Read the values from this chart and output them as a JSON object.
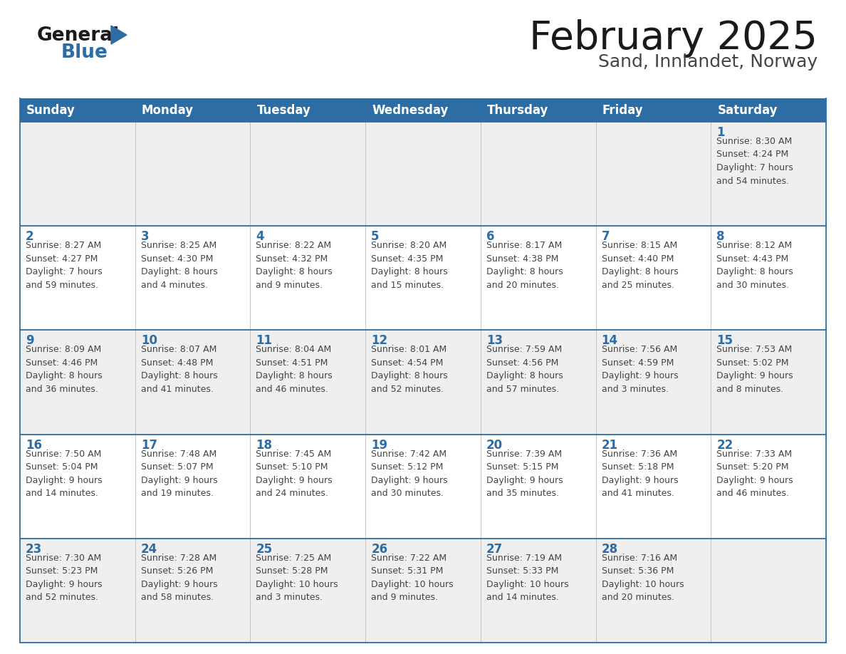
{
  "title": "February 2025",
  "subtitle": "Sand, Innlandet, Norway",
  "header_bg": "#2E6DA4",
  "header_text_color": "#FFFFFF",
  "day_names": [
    "Sunday",
    "Monday",
    "Tuesday",
    "Wednesday",
    "Thursday",
    "Friday",
    "Saturday"
  ],
  "cell_bg_odd": "#EFEFEF",
  "cell_bg_even": "#FFFFFF",
  "date_color": "#2E6DA4",
  "text_color": "#444444",
  "line_color": "#2E6DA4",
  "grid_line_color": "#BBBBBB",
  "weeks": [
    [
      {
        "day": "",
        "info": ""
      },
      {
        "day": "",
        "info": ""
      },
      {
        "day": "",
        "info": ""
      },
      {
        "day": "",
        "info": ""
      },
      {
        "day": "",
        "info": ""
      },
      {
        "day": "",
        "info": ""
      },
      {
        "day": "1",
        "info": "Sunrise: 8:30 AM\nSunset: 4:24 PM\nDaylight: 7 hours\nand 54 minutes."
      }
    ],
    [
      {
        "day": "2",
        "info": "Sunrise: 8:27 AM\nSunset: 4:27 PM\nDaylight: 7 hours\nand 59 minutes."
      },
      {
        "day": "3",
        "info": "Sunrise: 8:25 AM\nSunset: 4:30 PM\nDaylight: 8 hours\nand 4 minutes."
      },
      {
        "day": "4",
        "info": "Sunrise: 8:22 AM\nSunset: 4:32 PM\nDaylight: 8 hours\nand 9 minutes."
      },
      {
        "day": "5",
        "info": "Sunrise: 8:20 AM\nSunset: 4:35 PM\nDaylight: 8 hours\nand 15 minutes."
      },
      {
        "day": "6",
        "info": "Sunrise: 8:17 AM\nSunset: 4:38 PM\nDaylight: 8 hours\nand 20 minutes."
      },
      {
        "day": "7",
        "info": "Sunrise: 8:15 AM\nSunset: 4:40 PM\nDaylight: 8 hours\nand 25 minutes."
      },
      {
        "day": "8",
        "info": "Sunrise: 8:12 AM\nSunset: 4:43 PM\nDaylight: 8 hours\nand 30 minutes."
      }
    ],
    [
      {
        "day": "9",
        "info": "Sunrise: 8:09 AM\nSunset: 4:46 PM\nDaylight: 8 hours\nand 36 minutes."
      },
      {
        "day": "10",
        "info": "Sunrise: 8:07 AM\nSunset: 4:48 PM\nDaylight: 8 hours\nand 41 minutes."
      },
      {
        "day": "11",
        "info": "Sunrise: 8:04 AM\nSunset: 4:51 PM\nDaylight: 8 hours\nand 46 minutes."
      },
      {
        "day": "12",
        "info": "Sunrise: 8:01 AM\nSunset: 4:54 PM\nDaylight: 8 hours\nand 52 minutes."
      },
      {
        "day": "13",
        "info": "Sunrise: 7:59 AM\nSunset: 4:56 PM\nDaylight: 8 hours\nand 57 minutes."
      },
      {
        "day": "14",
        "info": "Sunrise: 7:56 AM\nSunset: 4:59 PM\nDaylight: 9 hours\nand 3 minutes."
      },
      {
        "day": "15",
        "info": "Sunrise: 7:53 AM\nSunset: 5:02 PM\nDaylight: 9 hours\nand 8 minutes."
      }
    ],
    [
      {
        "day": "16",
        "info": "Sunrise: 7:50 AM\nSunset: 5:04 PM\nDaylight: 9 hours\nand 14 minutes."
      },
      {
        "day": "17",
        "info": "Sunrise: 7:48 AM\nSunset: 5:07 PM\nDaylight: 9 hours\nand 19 minutes."
      },
      {
        "day": "18",
        "info": "Sunrise: 7:45 AM\nSunset: 5:10 PM\nDaylight: 9 hours\nand 24 minutes."
      },
      {
        "day": "19",
        "info": "Sunrise: 7:42 AM\nSunset: 5:12 PM\nDaylight: 9 hours\nand 30 minutes."
      },
      {
        "day": "20",
        "info": "Sunrise: 7:39 AM\nSunset: 5:15 PM\nDaylight: 9 hours\nand 35 minutes."
      },
      {
        "day": "21",
        "info": "Sunrise: 7:36 AM\nSunset: 5:18 PM\nDaylight: 9 hours\nand 41 minutes."
      },
      {
        "day": "22",
        "info": "Sunrise: 7:33 AM\nSunset: 5:20 PM\nDaylight: 9 hours\nand 46 minutes."
      }
    ],
    [
      {
        "day": "23",
        "info": "Sunrise: 7:30 AM\nSunset: 5:23 PM\nDaylight: 9 hours\nand 52 minutes."
      },
      {
        "day": "24",
        "info": "Sunrise: 7:28 AM\nSunset: 5:26 PM\nDaylight: 9 hours\nand 58 minutes."
      },
      {
        "day": "25",
        "info": "Sunrise: 7:25 AM\nSunset: 5:28 PM\nDaylight: 10 hours\nand 3 minutes."
      },
      {
        "day": "26",
        "info": "Sunrise: 7:22 AM\nSunset: 5:31 PM\nDaylight: 10 hours\nand 9 minutes."
      },
      {
        "day": "27",
        "info": "Sunrise: 7:19 AM\nSunset: 5:33 PM\nDaylight: 10 hours\nand 14 minutes."
      },
      {
        "day": "28",
        "info": "Sunrise: 7:16 AM\nSunset: 5:36 PM\nDaylight: 10 hours\nand 20 minutes."
      },
      {
        "day": "",
        "info": ""
      }
    ]
  ],
  "logo_color_general": "#1a1a1a",
  "logo_color_blue": "#2E6DA4",
  "logo_triangle_color": "#2E6DA4",
  "title_fontsize": 40,
  "subtitle_fontsize": 18,
  "header_fontsize": 12,
  "day_num_fontsize": 12,
  "info_fontsize": 9
}
